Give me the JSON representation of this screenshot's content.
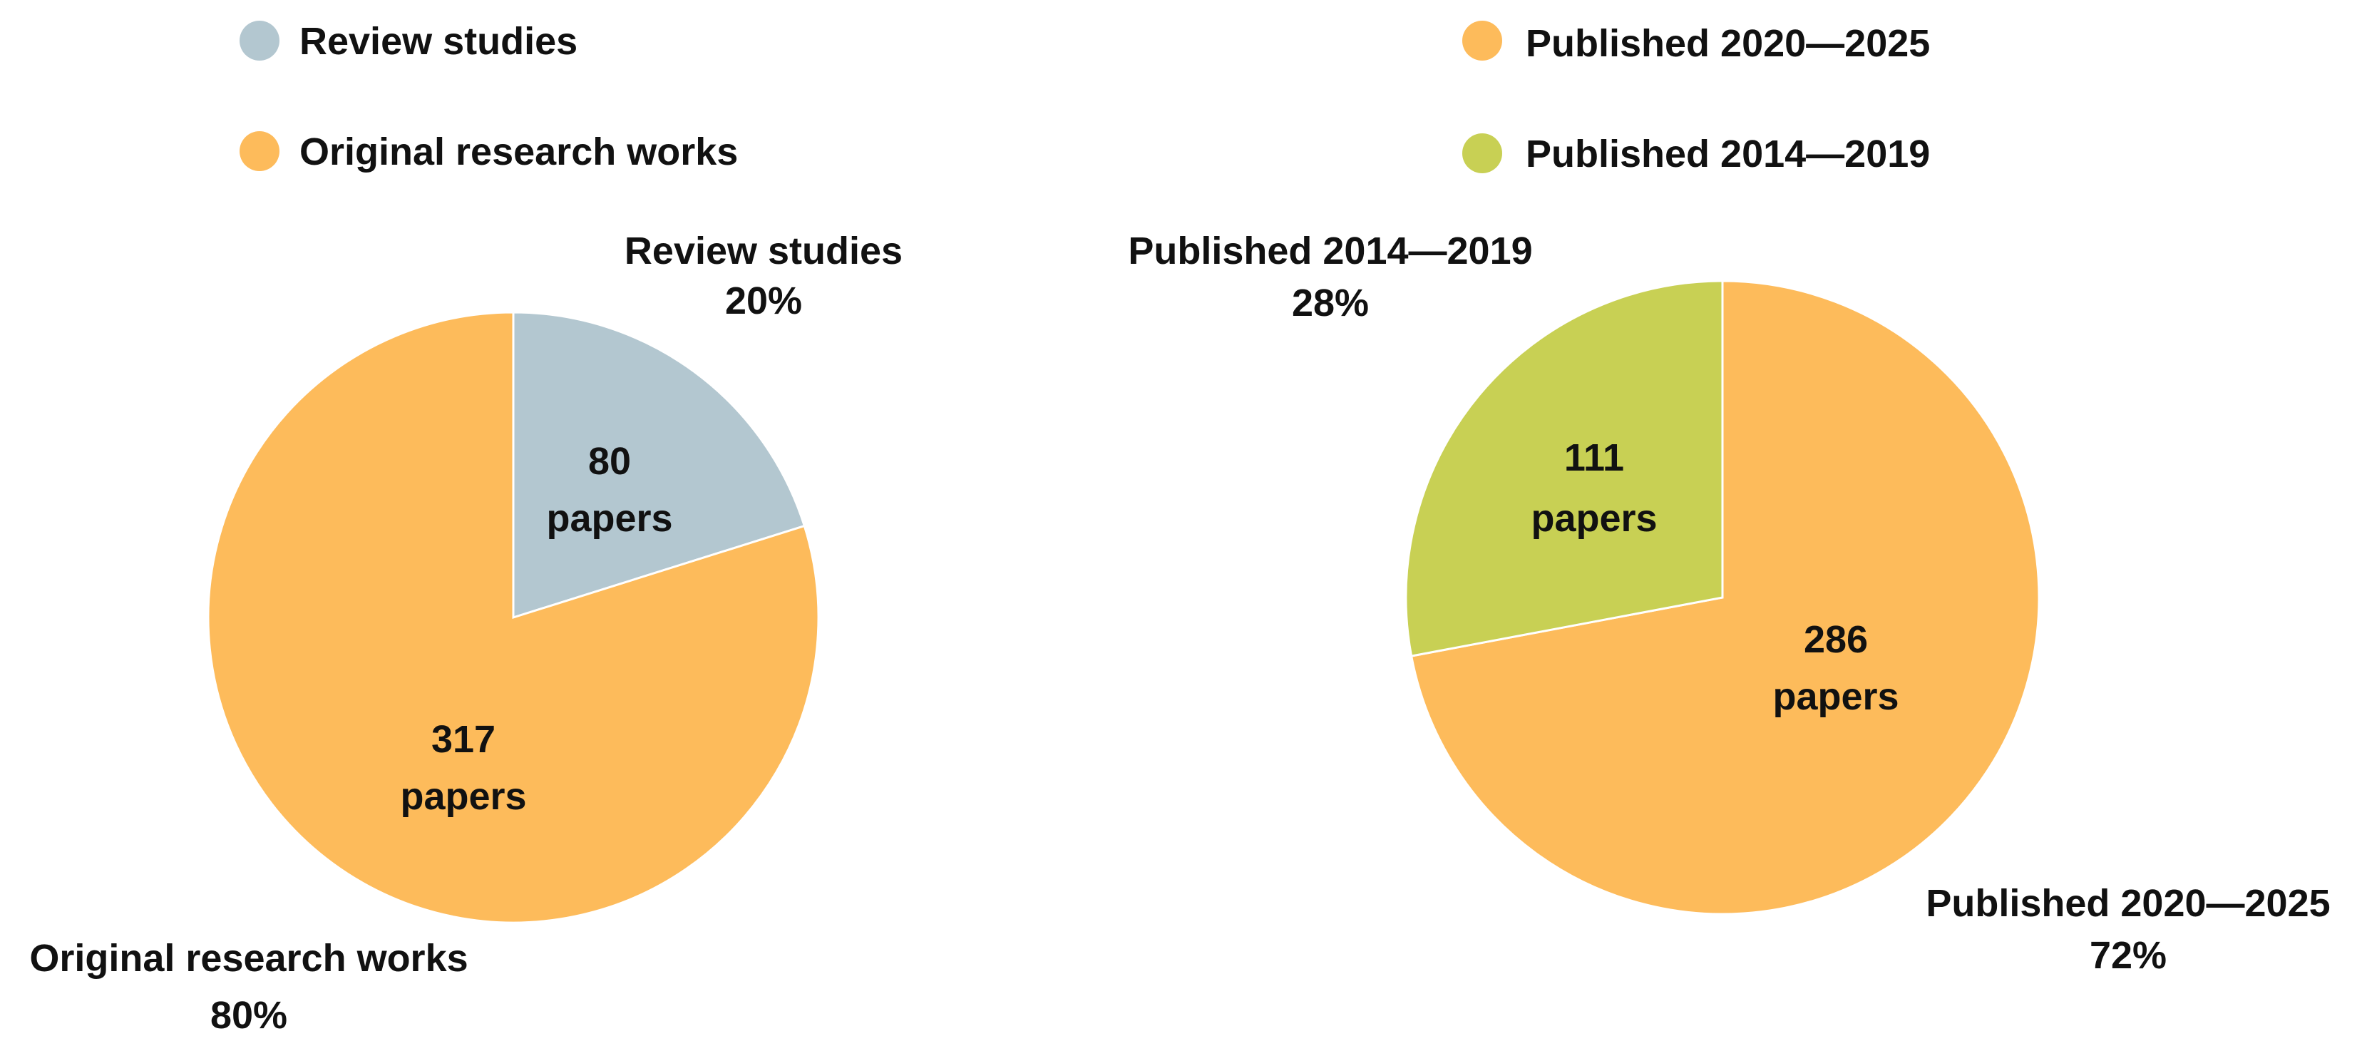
{
  "chart_data": [
    {
      "type": "pie",
      "unit_label": "papers",
      "slices": [
        {
          "name": "Review studies",
          "value": 80,
          "percent": "20%",
          "color": "#b3c7d0"
        },
        {
          "name": "Original research works",
          "value": 317,
          "percent": "80%",
          "color": "#fdbb5b"
        }
      ],
      "legend": [
        "Review studies",
        "Original research works"
      ],
      "legend_placement": "top"
    },
    {
      "type": "pie",
      "unit_label": "papers",
      "slices": [
        {
          "name": "Published 2020—2025",
          "value": 286,
          "percent": "72%",
          "color": "#fdbb5b"
        },
        {
          "name": "Published 2014—2019",
          "value": 111,
          "percent": "28%",
          "color": "#c8d054"
        }
      ],
      "legend": [
        "Published 2020—2025",
        "Published 2014—2019"
      ],
      "legend_placement": "top"
    }
  ]
}
